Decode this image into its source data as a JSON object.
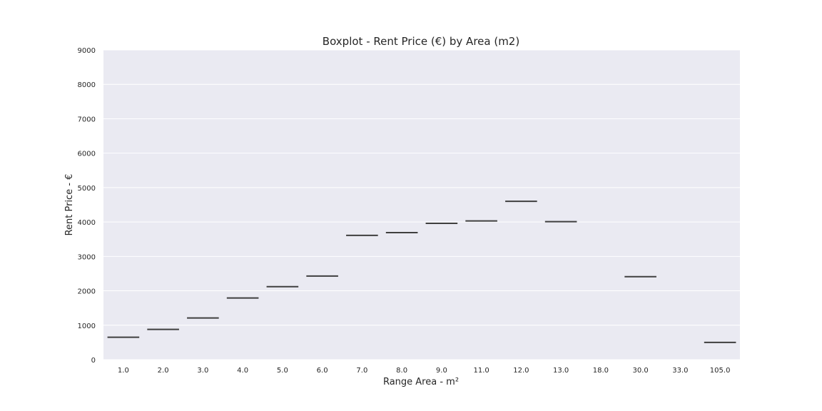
{
  "chart_data": {
    "type": "box",
    "title": "Boxplot - Rent Price (€) by Area (m2)",
    "xlabel": "Range Area - m²",
    "ylabel": "Rent Price - €",
    "ylim": [
      0,
      9000
    ],
    "yticks": [
      0,
      1000,
      2000,
      3000,
      4000,
      5000,
      6000,
      7000,
      8000,
      9000
    ],
    "categories": [
      "1.0",
      "2.0",
      "3.0",
      "4.0",
      "5.0",
      "6.0",
      "7.0",
      "8.0",
      "9.0",
      "11.0",
      "12.0",
      "13.0",
      "18.0",
      "30.0",
      "33.0",
      "105.0"
    ],
    "values": [
      650,
      880,
      1210,
      1790,
      2120,
      2430,
      3610,
      3690,
      3960,
      4030,
      4600,
      4010,
      null,
      2410,
      null,
      500
    ],
    "grid": true,
    "colors": {
      "plot_background": "#eaeaf2",
      "grid": "#ffffff",
      "median_line": "#3f3f3f"
    }
  }
}
